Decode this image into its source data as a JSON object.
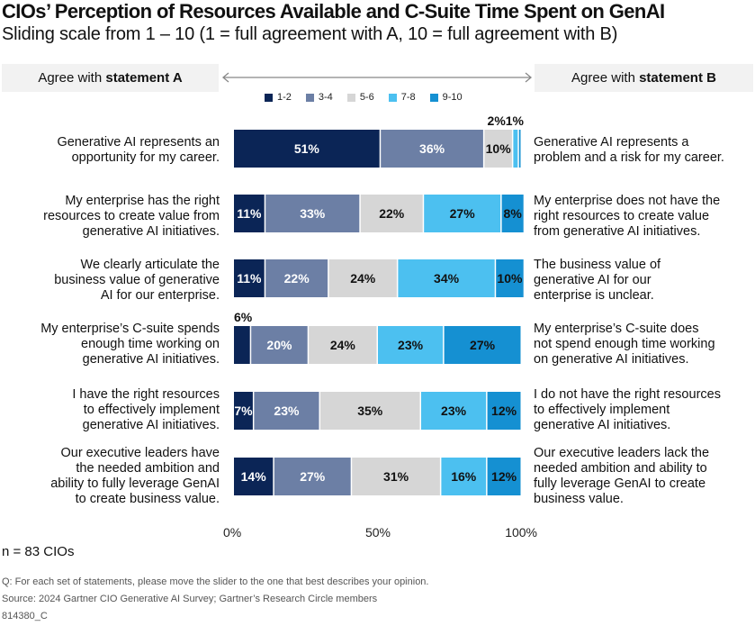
{
  "chart_data": {
    "type": "bar",
    "orientation": "horizontal-stacked-100",
    "title": "CIOs’ Perception of Resources Available and C-Suite Time Spent on GenAI",
    "subtitle": "Sliding scale from 1 – 10 (1 = full agreement with A, 10 = full agreement with B)",
    "statement_a_header": {
      "prefix": "Agree with ",
      "bold": "statement A"
    },
    "statement_b_header": {
      "prefix": "Agree with ",
      "bold": "statement B"
    },
    "xlabel": "",
    "ylabel": "",
    "xlim": [
      0,
      100
    ],
    "xticks": [
      "0%",
      "50%",
      "100%"
    ],
    "xtick_values": [
      0,
      50,
      100
    ],
    "legend_position": "top-center",
    "grid": false,
    "categories_a": [
      "Generative AI represents an opportunity for my career.",
      "My enterprise has the right resources to create value from generative AI initiatives.",
      "We clearly articulate the business value of generative AI for our enterprise.",
      "My enterprise’s C-suite spends enough time working on generative AI initiatives.",
      "I have the right resources to effectively implement generative AI initiatives.",
      "Our executive leaders have the needed ambition and ability to fully leverage GenAI to create business value."
    ],
    "categories_a_lines": [
      [
        "Generative AI represents an",
        "opportunity for my career."
      ],
      [
        "My enterprise has the right",
        "resources to create value from",
        "generative AI initiatives."
      ],
      [
        "We clearly articulate the",
        "business value of generative",
        "AI for our enterprise."
      ],
      [
        "My enterprise’s C-suite spends",
        "enough time working on",
        "generative AI initiatives."
      ],
      [
        "I have the right resources",
        "to effectively implement",
        "generative AI initiatives."
      ],
      [
        "Our executive leaders have",
        "the needed ambition and",
        "ability to fully leverage GenAI",
        "to create business value."
      ]
    ],
    "categories_b_lines": [
      [
        "Generative AI represents a",
        "problem and a risk for my career."
      ],
      [
        "My enterprise does not have the",
        "right resources to create value",
        "from generative AI initiatives."
      ],
      [
        "The business value of",
        "generative AI for our",
        "enterprise is unclear."
      ],
      [
        "My enterprise’s C-suite does",
        "not spend enough time working",
        "on generative AI initiatives."
      ],
      [
        "I do not have the right resources",
        "to effectively implement",
        "generative AI initiatives."
      ],
      [
        "Our executive leaders lack the",
        "needed ambition and ability to",
        "fully leverage GenAI to create",
        "business value."
      ]
    ],
    "series": [
      {
        "name": "1-2",
        "color": "#0b2556",
        "text_color": "#ffffff",
        "values": [
          51,
          11,
          11,
          6,
          7,
          14
        ]
      },
      {
        "name": "3-4",
        "color": "#6c7fa5",
        "text_color": "#ffffff",
        "values": [
          36,
          33,
          22,
          20,
          23,
          27
        ]
      },
      {
        "name": "5-6",
        "color": "#d6d6d6",
        "text_color": "#111111",
        "values": [
          10,
          22,
          24,
          24,
          35,
          31
        ]
      },
      {
        "name": "7-8",
        "color": "#4cc0f0",
        "text_color": "#111111",
        "values": [
          2,
          27,
          34,
          23,
          23,
          16
        ]
      },
      {
        "name": "9-10",
        "color": "#1590d2",
        "text_color": "#111111",
        "values": [
          1,
          8,
          10,
          27,
          12,
          12
        ]
      }
    ],
    "labels_outside": [
      {
        "row": 0,
        "series": [
          3,
          4
        ],
        "text": "2%1%"
      },
      {
        "row": 3,
        "series": [
          0
        ],
        "text": "6%"
      }
    ]
  },
  "footer": {
    "n": "n = 83 CIOs",
    "question": "Q: For each set of statements, please move the slider to the one that best describes your opinion.",
    "source": "Source: 2024 Gartner CIO Generative AI Survey; Gartner’s Research Circle members",
    "id": "814380_C"
  }
}
